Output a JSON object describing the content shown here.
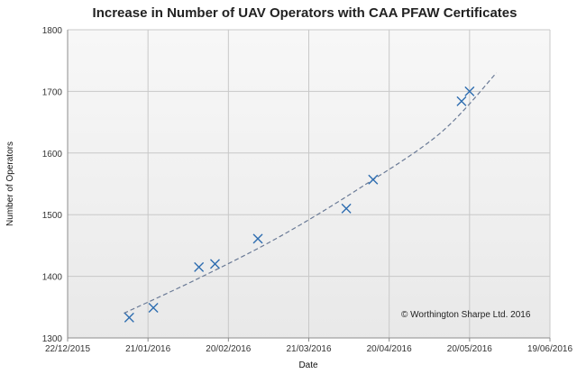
{
  "chart_data": {
    "type": "scatter",
    "title": "Increase in Number of UAV Operators with CAA PFAW Certificates",
    "xlabel": "Date",
    "ylabel": "Number of Operators",
    "x_ticks": [
      "22/12/2015",
      "21/01/2016",
      "20/02/2016",
      "21/03/2016",
      "20/04/2016",
      "20/05/2016",
      "19/06/2016"
    ],
    "y_ticks": [
      1300,
      1400,
      1500,
      1600,
      1700,
      1800
    ],
    "xlim": [
      "2015-12-22",
      "2016-06-19"
    ],
    "ylim": [
      1300,
      1800
    ],
    "grid": true,
    "marker": "x",
    "colors": {
      "marker": "#2e6db0",
      "trendline": "#6a7a96"
    },
    "series": [
      {
        "points": [
          {
            "x": "2016-01-14",
            "y": 1333
          },
          {
            "x": "2016-01-23",
            "y": 1349
          },
          {
            "x": "2016-02-09",
            "y": 1415
          },
          {
            "x": "2016-02-15",
            "y": 1420
          },
          {
            "x": "2016-03-02",
            "y": 1461
          },
          {
            "x": "2016-04-04",
            "y": 1510
          },
          {
            "x": "2016-04-14",
            "y": 1557
          },
          {
            "x": "2016-05-17",
            "y": 1684
          },
          {
            "x": "2016-05-20",
            "y": 1700
          }
        ]
      }
    ],
    "trendline": {
      "style": "dashed",
      "points": [
        {
          "x": "2016-01-12",
          "y": 1340
        },
        {
          "x": "2016-02-09",
          "y": 1397
        },
        {
          "x": "2016-03-10",
          "y": 1464
        },
        {
          "x": "2016-04-09",
          "y": 1543
        },
        {
          "x": "2016-05-09",
          "y": 1632
        },
        {
          "x": "2016-05-30",
          "y": 1730
        }
      ]
    },
    "annotation": "© Worthington Sharpe Ltd. 2016"
  }
}
